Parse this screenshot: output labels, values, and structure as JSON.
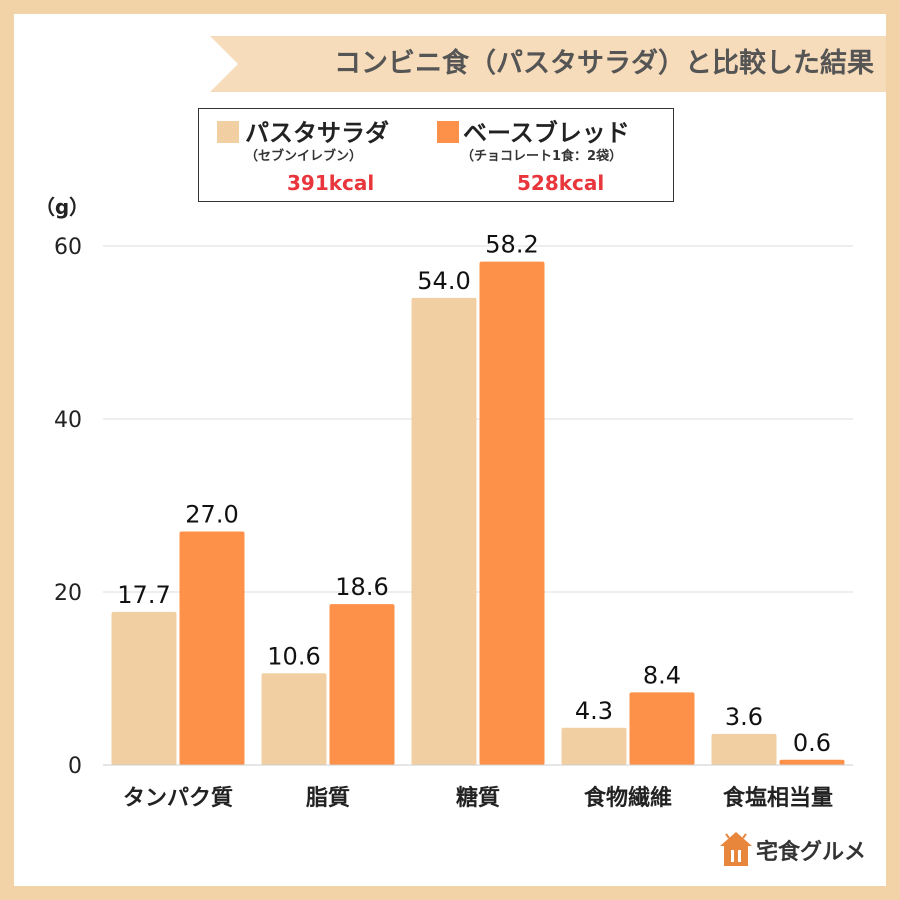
{
  "title": "コンビニ食（パスタサラダ）と比較した結果",
  "legend": {
    "items": [
      {
        "name": "パスタサラダ",
        "sub": "（セブンイレブン）",
        "kcal": "391kcal",
        "color": "#f1cfa3"
      },
      {
        "name": "ベースブレッド",
        "sub": "（チョコレート1食：2袋）",
        "kcal": "528kcal",
        "color": "#fd9149"
      }
    ]
  },
  "chart_data": {
    "type": "bar",
    "ylabel": "（g）",
    "ylim": [
      0,
      60
    ],
    "yticks": [
      0,
      20,
      40,
      60
    ],
    "grid": true,
    "categories": [
      "タンパク質",
      "脂質",
      "糖質",
      "食物繊維",
      "食塩相当量"
    ],
    "series": [
      {
        "name": "パスタサラダ",
        "color": "#f1cfa3",
        "values": [
          17.7,
          10.6,
          54.0,
          4.3,
          3.6
        ],
        "labels": [
          "17.7",
          "10.6",
          "54.0",
          "4.3",
          "3.6"
        ]
      },
      {
        "name": "ベースブレッド",
        "color": "#fd9149",
        "values": [
          27.0,
          18.6,
          58.2,
          8.4,
          0.6
        ],
        "labels": [
          "27.0",
          "18.6",
          "58.2",
          "8.4",
          "0.6"
        ]
      }
    ]
  },
  "logo": {
    "text": "宅食グルメ",
    "color": "#e8863c"
  }
}
